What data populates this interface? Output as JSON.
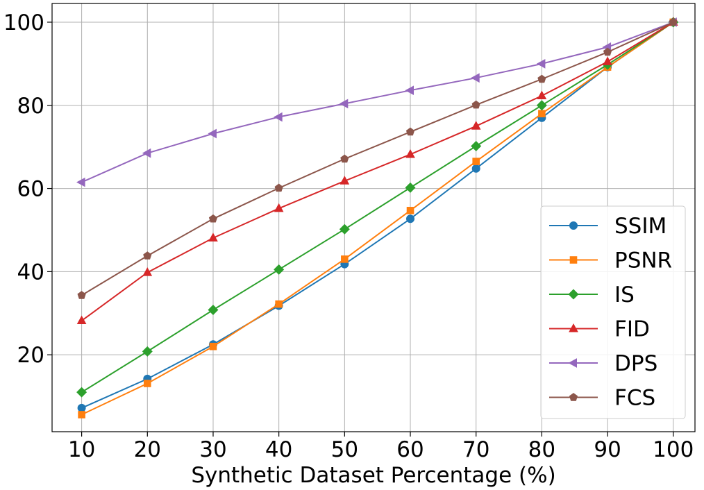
{
  "chart_data": {
    "type": "line",
    "title": "",
    "xlabel": "Synthetic Dataset Percentage (%)",
    "ylabel": "",
    "x": [
      10,
      20,
      30,
      40,
      50,
      60,
      70,
      80,
      90,
      100
    ],
    "x_tick_labels": [
      "10",
      "20",
      "30",
      "40",
      "50",
      "60",
      "70",
      "80",
      "90",
      "100"
    ],
    "y_ticks": [
      20,
      40,
      60,
      80,
      100
    ],
    "y_tick_labels": [
      "20",
      "40",
      "60",
      "80",
      "100"
    ],
    "xlim": [
      5.5,
      103.3
    ],
    "ylim": [
      1.5,
      104.5
    ],
    "grid": true,
    "legend_position": "lower-right",
    "series": [
      {
        "name": "SSIM",
        "marker": "circle",
        "color": "#1f77b4",
        "values": [
          7.2,
          14.2,
          22.5,
          31.8,
          41.8,
          52.7,
          64.8,
          77.0,
          89.2,
          100.0
        ]
      },
      {
        "name": "PSNR",
        "marker": "square",
        "color": "#ff7f0e",
        "values": [
          5.6,
          13.1,
          22.0,
          32.2,
          43.0,
          54.7,
          66.5,
          78.0,
          89.2,
          100.0
        ]
      },
      {
        "name": "IS",
        "marker": "diamond",
        "color": "#2ca02c",
        "values": [
          11.0,
          20.8,
          30.8,
          40.5,
          50.2,
          60.2,
          70.2,
          80.0,
          89.8,
          100.0
        ]
      },
      {
        "name": "FID",
        "marker": "triangle-up",
        "color": "#d62728",
        "values": [
          28.2,
          39.8,
          48.1,
          55.2,
          61.8,
          68.2,
          75.0,
          82.3,
          90.5,
          100.0
        ]
      },
      {
        "name": "DPS",
        "marker": "triangle-left",
        "color": "#9467bd",
        "values": [
          61.5,
          68.5,
          73.2,
          77.2,
          80.4,
          83.6,
          86.6,
          90.0,
          94.0,
          100.0
        ]
      },
      {
        "name": "FCS",
        "marker": "pentagon",
        "color": "#8c564b",
        "values": [
          34.3,
          43.8,
          52.7,
          60.1,
          67.1,
          73.6,
          80.1,
          86.3,
          92.8,
          100.0
        ]
      }
    ]
  }
}
